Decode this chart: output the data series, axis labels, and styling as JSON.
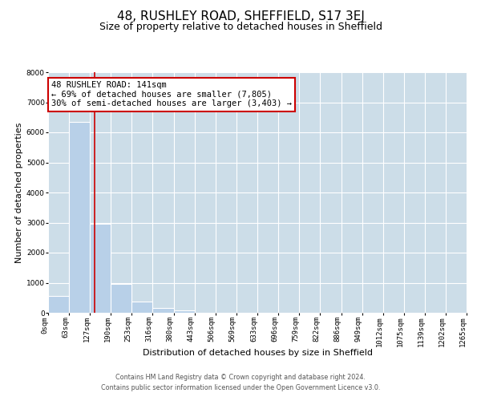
{
  "title": "48, RUSHLEY ROAD, SHEFFIELD, S17 3EJ",
  "subtitle": "Size of property relative to detached houses in Sheffield",
  "xlabel": "Distribution of detached houses by size in Sheffield",
  "ylabel": "Number of detached properties",
  "bar_edges": [
    0,
    63,
    127,
    190,
    253,
    316,
    380,
    443,
    506,
    569,
    633,
    696,
    759,
    822,
    886,
    949,
    1012,
    1075,
    1139,
    1202,
    1265
  ],
  "bar_heights": [
    560,
    6350,
    2950,
    950,
    375,
    170,
    80,
    0,
    0,
    0,
    0,
    0,
    0,
    0,
    0,
    0,
    0,
    0,
    0,
    0
  ],
  "bar_color": "#b8d0e8",
  "bar_edge_color": "#ffffff",
  "property_line_x": 141,
  "property_line_color": "#cc0000",
  "ylim": [
    0,
    8000
  ],
  "annotation_title": "48 RUSHLEY ROAD: 141sqm",
  "annotation_line1": "← 69% of detached houses are smaller (7,805)",
  "annotation_line2": "30% of semi-detached houses are larger (3,403) →",
  "annotation_box_color": "#cc0000",
  "footnote1": "Contains HM Land Registry data © Crown copyright and database right 2024.",
  "footnote2": "Contains public sector information licensed under the Open Government Licence v3.0.",
  "tick_labels": [
    "0sqm",
    "63sqm",
    "127sqm",
    "190sqm",
    "253sqm",
    "316sqm",
    "380sqm",
    "443sqm",
    "506sqm",
    "569sqm",
    "633sqm",
    "696sqm",
    "759sqm",
    "822sqm",
    "886sqm",
    "949sqm",
    "1012sqm",
    "1075sqm",
    "1139sqm",
    "1202sqm",
    "1265sqm"
  ],
  "background_color": "#ffffff",
  "grid_color": "#ccdde8",
  "title_fontsize": 11,
  "subtitle_fontsize": 9,
  "axis_label_fontsize": 8,
  "tick_fontsize": 6.5,
  "annotation_fontsize": 7.5,
  "footnote_fontsize": 5.8,
  "yticks": [
    0,
    1000,
    2000,
    3000,
    4000,
    5000,
    6000,
    7000,
    8000
  ]
}
